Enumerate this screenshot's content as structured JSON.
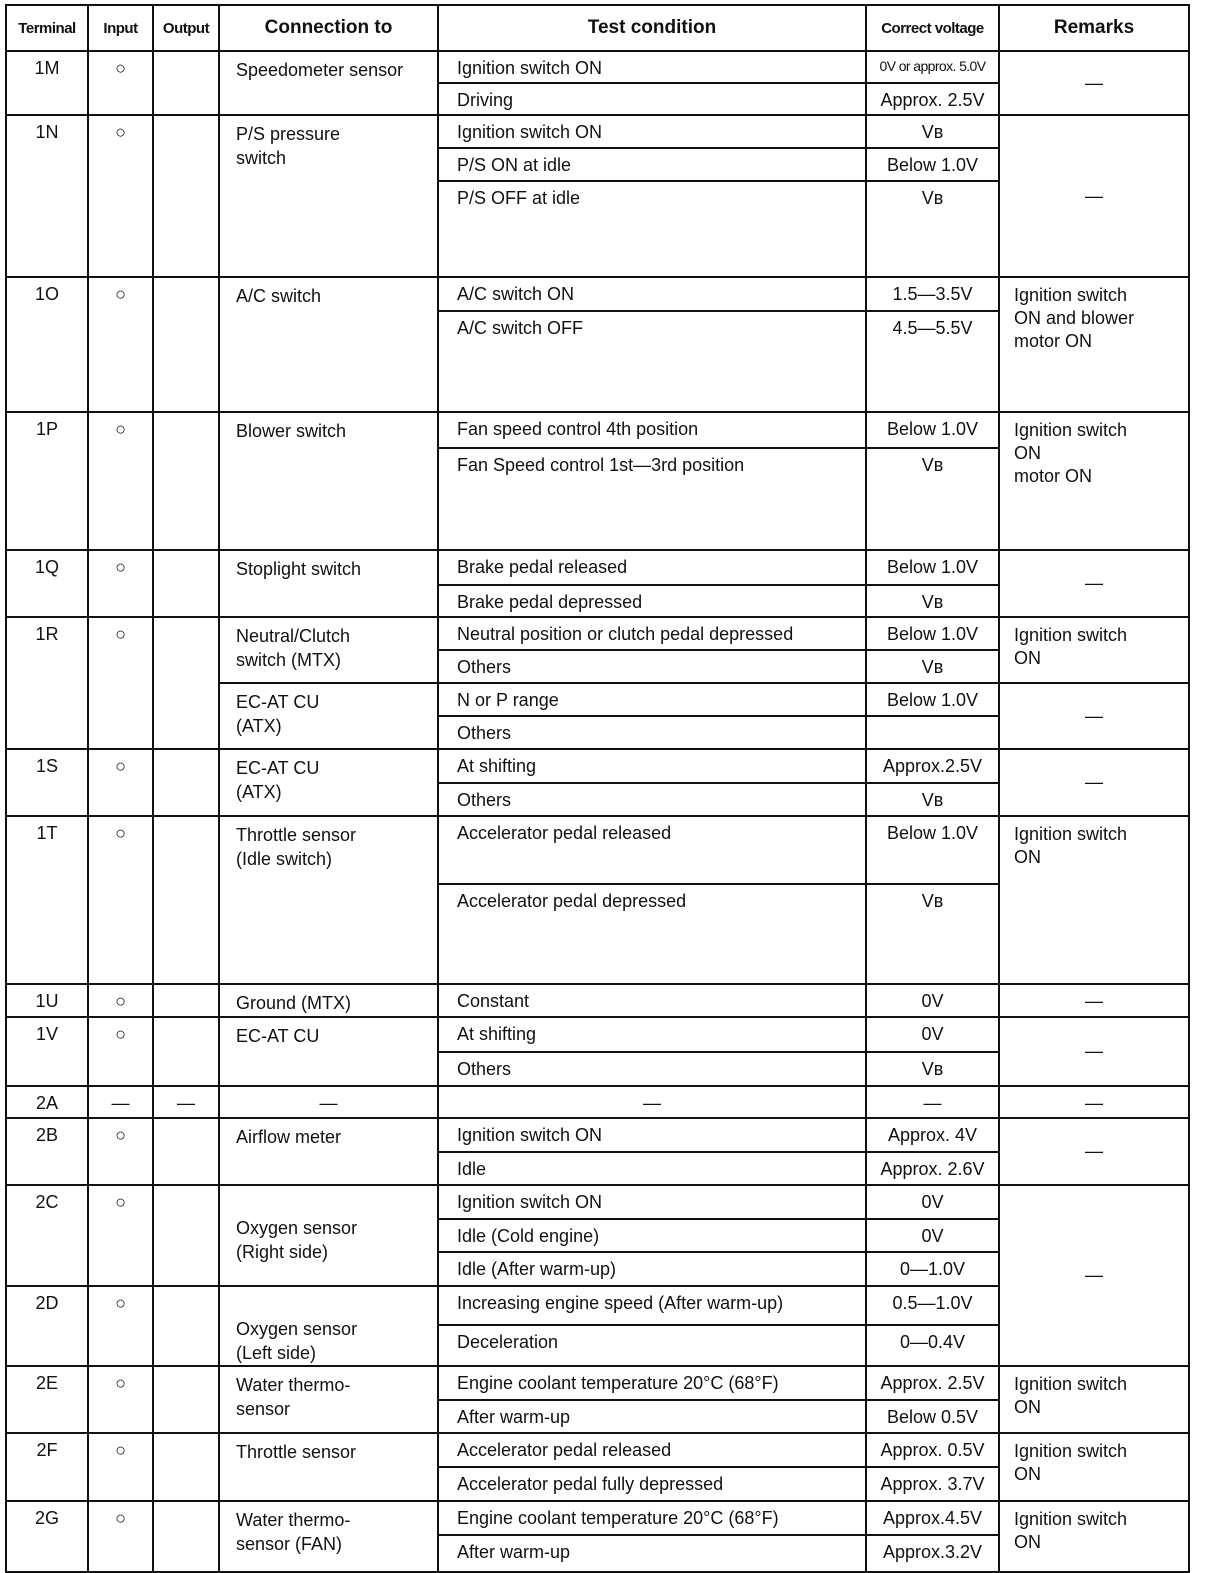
{
  "headers": {
    "terminal": "Terminal",
    "input": "Input",
    "output": "Output",
    "connection": "Connection to",
    "condition": "Test condition",
    "voltage": "Correct voltage",
    "remarks": "Remarks"
  },
  "terminals": [
    {
      "terminal": "1M",
      "input": "○",
      "output": ""
    },
    {
      "terminal": "1N",
      "input": "○",
      "output": ""
    },
    {
      "terminal": "1O",
      "input": "○",
      "output": ""
    },
    {
      "terminal": "1P",
      "input": "○",
      "output": ""
    },
    {
      "terminal": "1Q",
      "input": "○",
      "output": ""
    },
    {
      "terminal": "1R",
      "input": "○",
      "output": ""
    },
    {
      "terminal": "1S",
      "input": "○",
      "output": ""
    },
    {
      "terminal": "1T",
      "input": "○",
      "output": ""
    },
    {
      "terminal": "1U",
      "input": "○",
      "output": ""
    },
    {
      "terminal": "1V",
      "input": "○",
      "output": ""
    },
    {
      "terminal": "2A",
      "input": "—",
      "output": "—"
    },
    {
      "terminal": "2B",
      "input": "○",
      "output": ""
    },
    {
      "terminal": "2C",
      "input": "○",
      "output": ""
    },
    {
      "terminal": "2D",
      "input": "○",
      "output": ""
    },
    {
      "terminal": "2E",
      "input": "○",
      "output": ""
    },
    {
      "terminal": "2F",
      "input": "○",
      "output": ""
    },
    {
      "terminal": "2G",
      "input": "○",
      "output": ""
    }
  ],
  "connections": [
    "Speedometer sensor",
    "P/S pressure\nswitch",
    "A/C switch",
    "Blower switch",
    "Stoplight switch",
    "Neutral/Clutch\nswitch (MTX)",
    "EC-AT CU\n(ATX)",
    "EC-AT CU\n(ATX)",
    "Throttle sensor\n(Idle switch)",
    "Ground (MTX)",
    "EC-AT CU",
    "—",
    "Airflow meter",
    "\nOxygen sensor\n(Right side)",
    "\nOxygen sensor\n(Left side)",
    "Water thermo-\nsensor",
    "Throttle sensor",
    "Water thermo-\nsensor (FAN)"
  ],
  "remarks": [
    "—",
    "—",
    "Ignition switch\nON and blower\nmotor ON",
    "Ignition switch\nON\nmotor ON",
    "—",
    "Ignition switch\nON",
    "—",
    "—",
    "Ignition switch\nON",
    "—",
    "—",
    "—",
    "—",
    "—",
    "Ignition switch\nON",
    "Ignition switch\nON",
    "Ignition switch\nON"
  ],
  "rows": [
    {
      "condition": "Ignition switch ON",
      "voltage": "0V or approx. 5.0V"
    },
    {
      "condition": "Driving",
      "voltage": "Approx. 2.5V"
    },
    {
      "condition": "Ignition switch ON",
      "voltage": "Vʙ"
    },
    {
      "condition": "P/S ON at idle",
      "voltage": "Below 1.0V"
    },
    {
      "condition": "P/S OFF at idle",
      "voltage": "Vʙ"
    },
    {
      "condition": "A/C switch ON",
      "voltage": "1.5—3.5V"
    },
    {
      "condition": "A/C switch OFF",
      "voltage": "4.5—5.5V"
    },
    {
      "condition": "Fan speed control 4th position",
      "voltage": "Below 1.0V"
    },
    {
      "condition": "Fan Speed control 1st—3rd position",
      "voltage": "Vʙ"
    },
    {
      "condition": "Brake pedal released",
      "voltage": "Below 1.0V"
    },
    {
      "condition": "Brake pedal depressed",
      "voltage": "Vʙ"
    },
    {
      "condition": "Neutral position or clutch pedal depressed",
      "voltage": "Below 1.0V"
    },
    {
      "condition": "Others",
      "voltage": "Vʙ"
    },
    {
      "condition": "N or P range",
      "voltage": "Below 1.0V"
    },
    {
      "condition": "Others",
      "voltage": ""
    },
    {
      "condition": "At shifting",
      "voltage": "Approx.2.5V"
    },
    {
      "condition": "Others",
      "voltage": "Vʙ"
    },
    {
      "condition": "Accelerator pedal released",
      "voltage": "Below 1.0V"
    },
    {
      "condition": "Accelerator pedal depressed",
      "voltage": "Vʙ"
    },
    {
      "condition": "Constant",
      "voltage": "0V"
    },
    {
      "condition": "At shifting",
      "voltage": "0V"
    },
    {
      "condition": "Others",
      "voltage": "Vʙ"
    },
    {
      "condition": "—",
      "voltage": "—"
    },
    {
      "condition": "Ignition switch ON",
      "voltage": "Approx. 4V"
    },
    {
      "condition": "Idle",
      "voltage": "Approx. 2.6V"
    },
    {
      "condition": "Ignition switch ON",
      "voltage": "0V"
    },
    {
      "condition": "Idle (Cold engine)",
      "voltage": "0V"
    },
    {
      "condition": "Idle (After warm-up)",
      "voltage": "0—1.0V"
    },
    {
      "condition": "Increasing engine speed (After warm-up)",
      "voltage": "0.5—1.0V"
    },
    {
      "condition": "Deceleration",
      "voltage": "0—0.4V"
    },
    {
      "condition": "Engine coolant temperature 20°C (68°F)",
      "voltage": "Approx. 2.5V"
    },
    {
      "condition": "After warm-up",
      "voltage": "Below 0.5V"
    },
    {
      "condition": "Accelerator pedal released",
      "voltage": "Approx. 0.5V"
    },
    {
      "condition": "Accelerator pedal fully depressed",
      "voltage": "Approx. 3.7V"
    },
    {
      "condition": "Engine coolant temperature 20°C (68°F)",
      "voltage": "Approx.4.5V"
    },
    {
      "condition": "After warm-up",
      "voltage": "Approx.3.2V"
    }
  ]
}
